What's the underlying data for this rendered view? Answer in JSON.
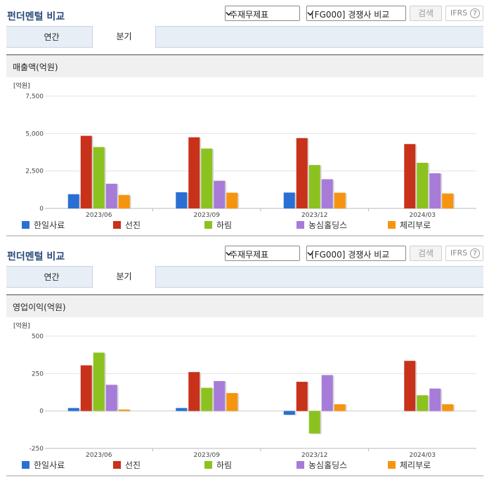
{
  "panels": [
    {
      "title": "펀더멘털 비교",
      "select1": "주재무제표",
      "select2": "[FG000] 경쟁사 비교",
      "search_label": "검색",
      "ifrs_label": "IFRS",
      "help_label": "?",
      "tabs": [
        "연간",
        "분기"
      ],
      "active_tab": "분기",
      "section_title": "매출액(억원)",
      "unit_label": "[억원]"
    },
    {
      "title": "펀더멘털 비교",
      "select1": "주재무제표",
      "select2": "[FG000] 경쟁사 비교",
      "search_label": "검색",
      "ifrs_label": "IFRS",
      "help_label": "?",
      "tabs": [
        "연간",
        "분기"
      ],
      "active_tab": "분기",
      "section_title": "영업이익(억원)",
      "unit_label": "[억원]"
    }
  ],
  "chart_data": [
    {
      "type": "bar",
      "categories": [
        "2023/06",
        "2023/09",
        "2023/12",
        "2024/03"
      ],
      "ylim": [
        0,
        7500
      ],
      "yticks": [
        0,
        2500,
        5000,
        7500
      ],
      "ytick_labels": [
        "0",
        "2,500",
        "5,000",
        "7,500"
      ],
      "ylabel": "[억원]",
      "series": [
        {
          "name": "한일사료",
          "color": "#2a6fd4",
          "values": [
            950,
            1080,
            1060,
            null
          ]
        },
        {
          "name": "선진",
          "color": "#c8321a",
          "values": [
            4850,
            4750,
            4700,
            4300
          ]
        },
        {
          "name": "하림",
          "color": "#8cc21f",
          "values": [
            4100,
            4000,
            2900,
            3050
          ]
        },
        {
          "name": "농심홀딩스",
          "color": "#a77cd8",
          "values": [
            1650,
            1850,
            1950,
            2350
          ]
        },
        {
          "name": "체리부로",
          "color": "#f5950f",
          "values": [
            900,
            1050,
            1050,
            1000
          ]
        }
      ]
    },
    {
      "type": "bar",
      "categories": [
        "2023/06",
        "2023/09",
        "2023/12",
        "2024/03"
      ],
      "ylim": [
        -250,
        500
      ],
      "yticks": [
        -250,
        0,
        250,
        500
      ],
      "ytick_labels": [
        "-250",
        "0",
        "250",
        "500"
      ],
      "ylabel": "[억원]",
      "series": [
        {
          "name": "한일사료",
          "color": "#2a6fd4",
          "values": [
            20,
            20,
            -25,
            null
          ]
        },
        {
          "name": "선진",
          "color": "#c8321a",
          "values": [
            305,
            260,
            195,
            335
          ]
        },
        {
          "name": "하림",
          "color": "#8cc21f",
          "values": [
            390,
            155,
            -150,
            105
          ]
        },
        {
          "name": "농심홀딩스",
          "color": "#a77cd8",
          "values": [
            175,
            200,
            240,
            150
          ]
        },
        {
          "name": "체리부로",
          "color": "#f5950f",
          "values": [
            10,
            120,
            45,
            45
          ]
        }
      ]
    }
  ]
}
